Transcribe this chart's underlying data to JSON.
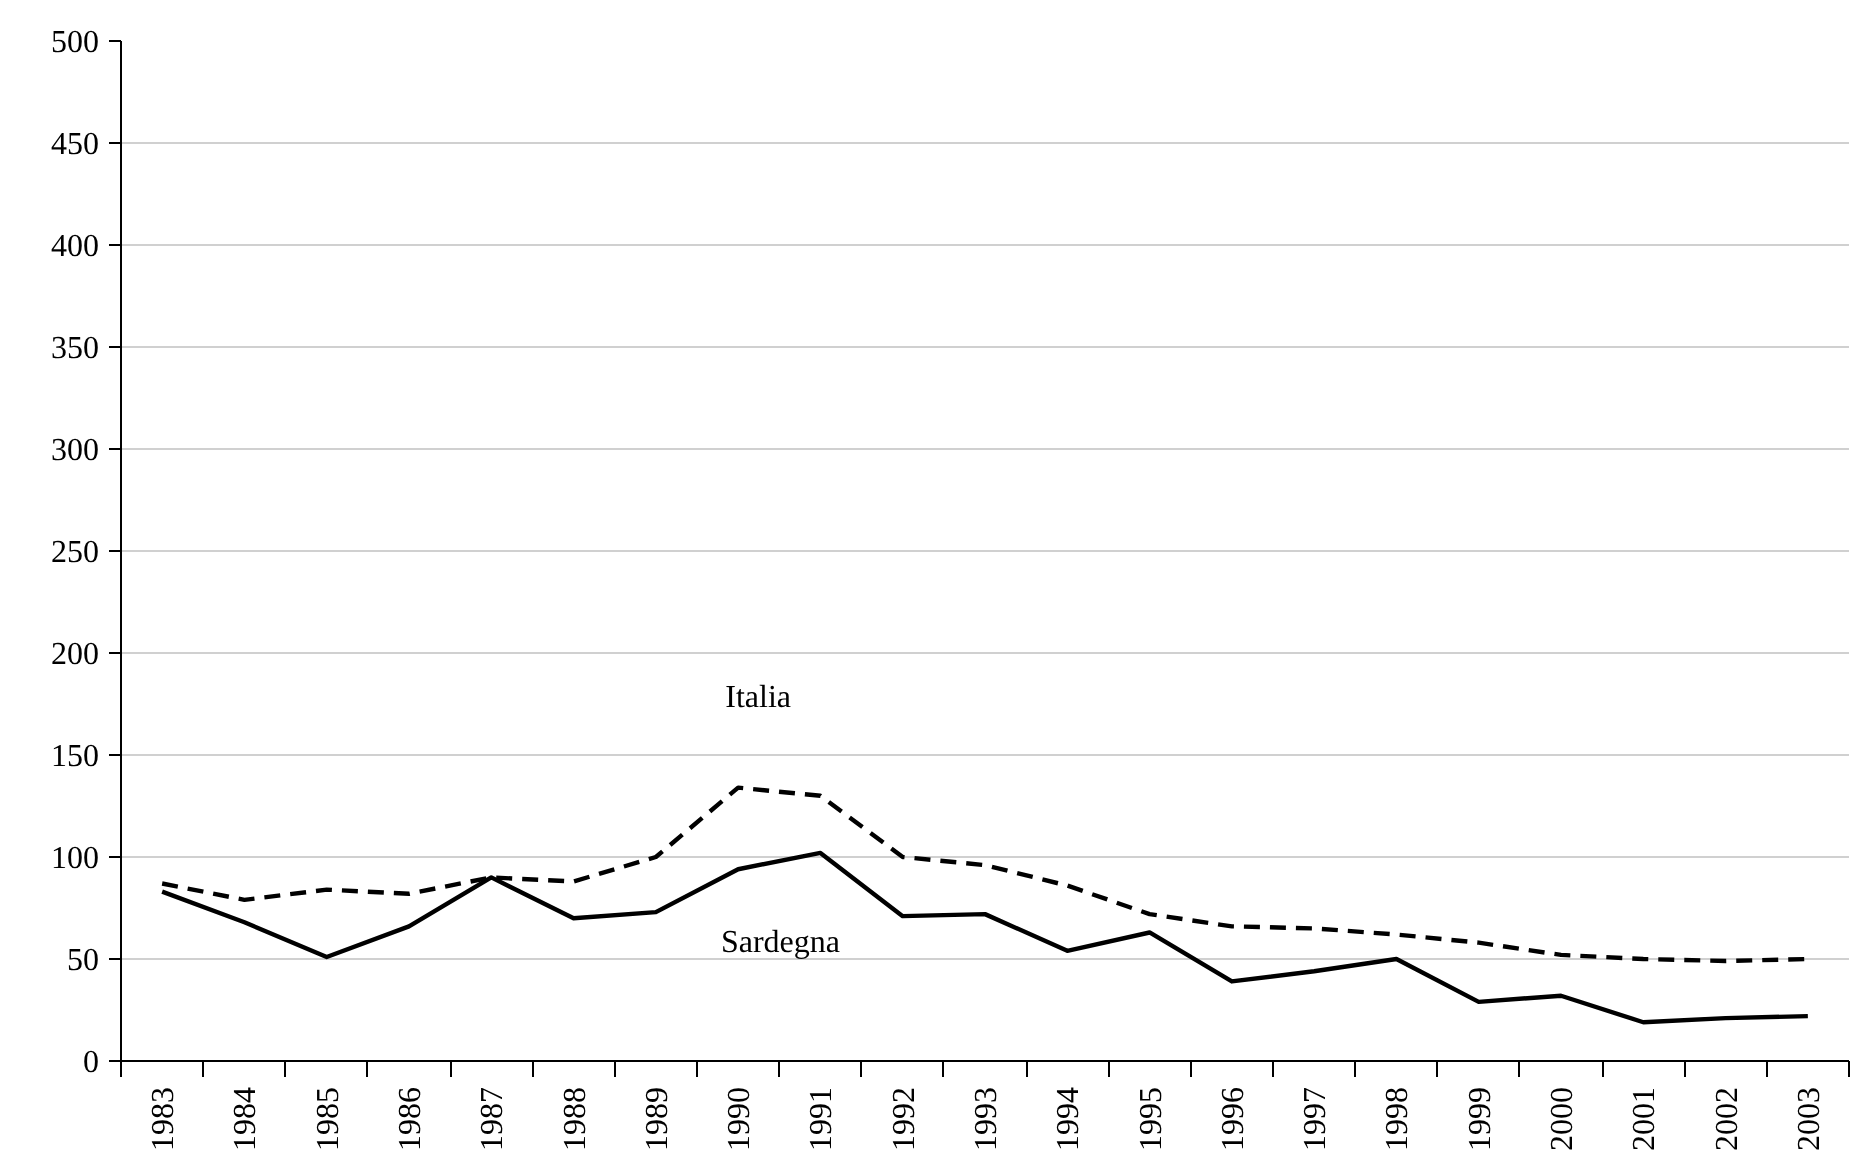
{
  "chart_data": {
    "type": "line",
    "categories": [
      "1983",
      "1984",
      "1985",
      "1986",
      "1987",
      "1988",
      "1989",
      "1990",
      "1991",
      "1992",
      "1993",
      "1994",
      "1995",
      "1996",
      "1997",
      "1998",
      "1999",
      "2000",
      "2001",
      "2002",
      "2003"
    ],
    "series": [
      {
        "name": "Italia",
        "color": "#000000",
        "line_style": "dashed",
        "values": [
          87,
          79,
          84,
          82,
          90,
          88,
          100,
          134,
          130,
          100,
          96,
          86,
          72,
          66,
          65,
          62,
          58,
          52,
          50,
          49,
          50
        ]
      },
      {
        "name": "Sardegna",
        "color": "#000000",
        "line_style": "solid",
        "values": [
          83,
          68,
          51,
          66,
          90,
          70,
          73,
          94,
          102,
          71,
          72,
          54,
          63,
          39,
          44,
          50,
          29,
          32,
          19,
          21,
          22
        ]
      }
    ],
    "ylim": [
      0,
      500
    ],
    "yticks": [
      0,
      50,
      100,
      150,
      200,
      250,
      300,
      350,
      400,
      450,
      500
    ],
    "grid": "y",
    "legend": false,
    "marker": "none"
  }
}
